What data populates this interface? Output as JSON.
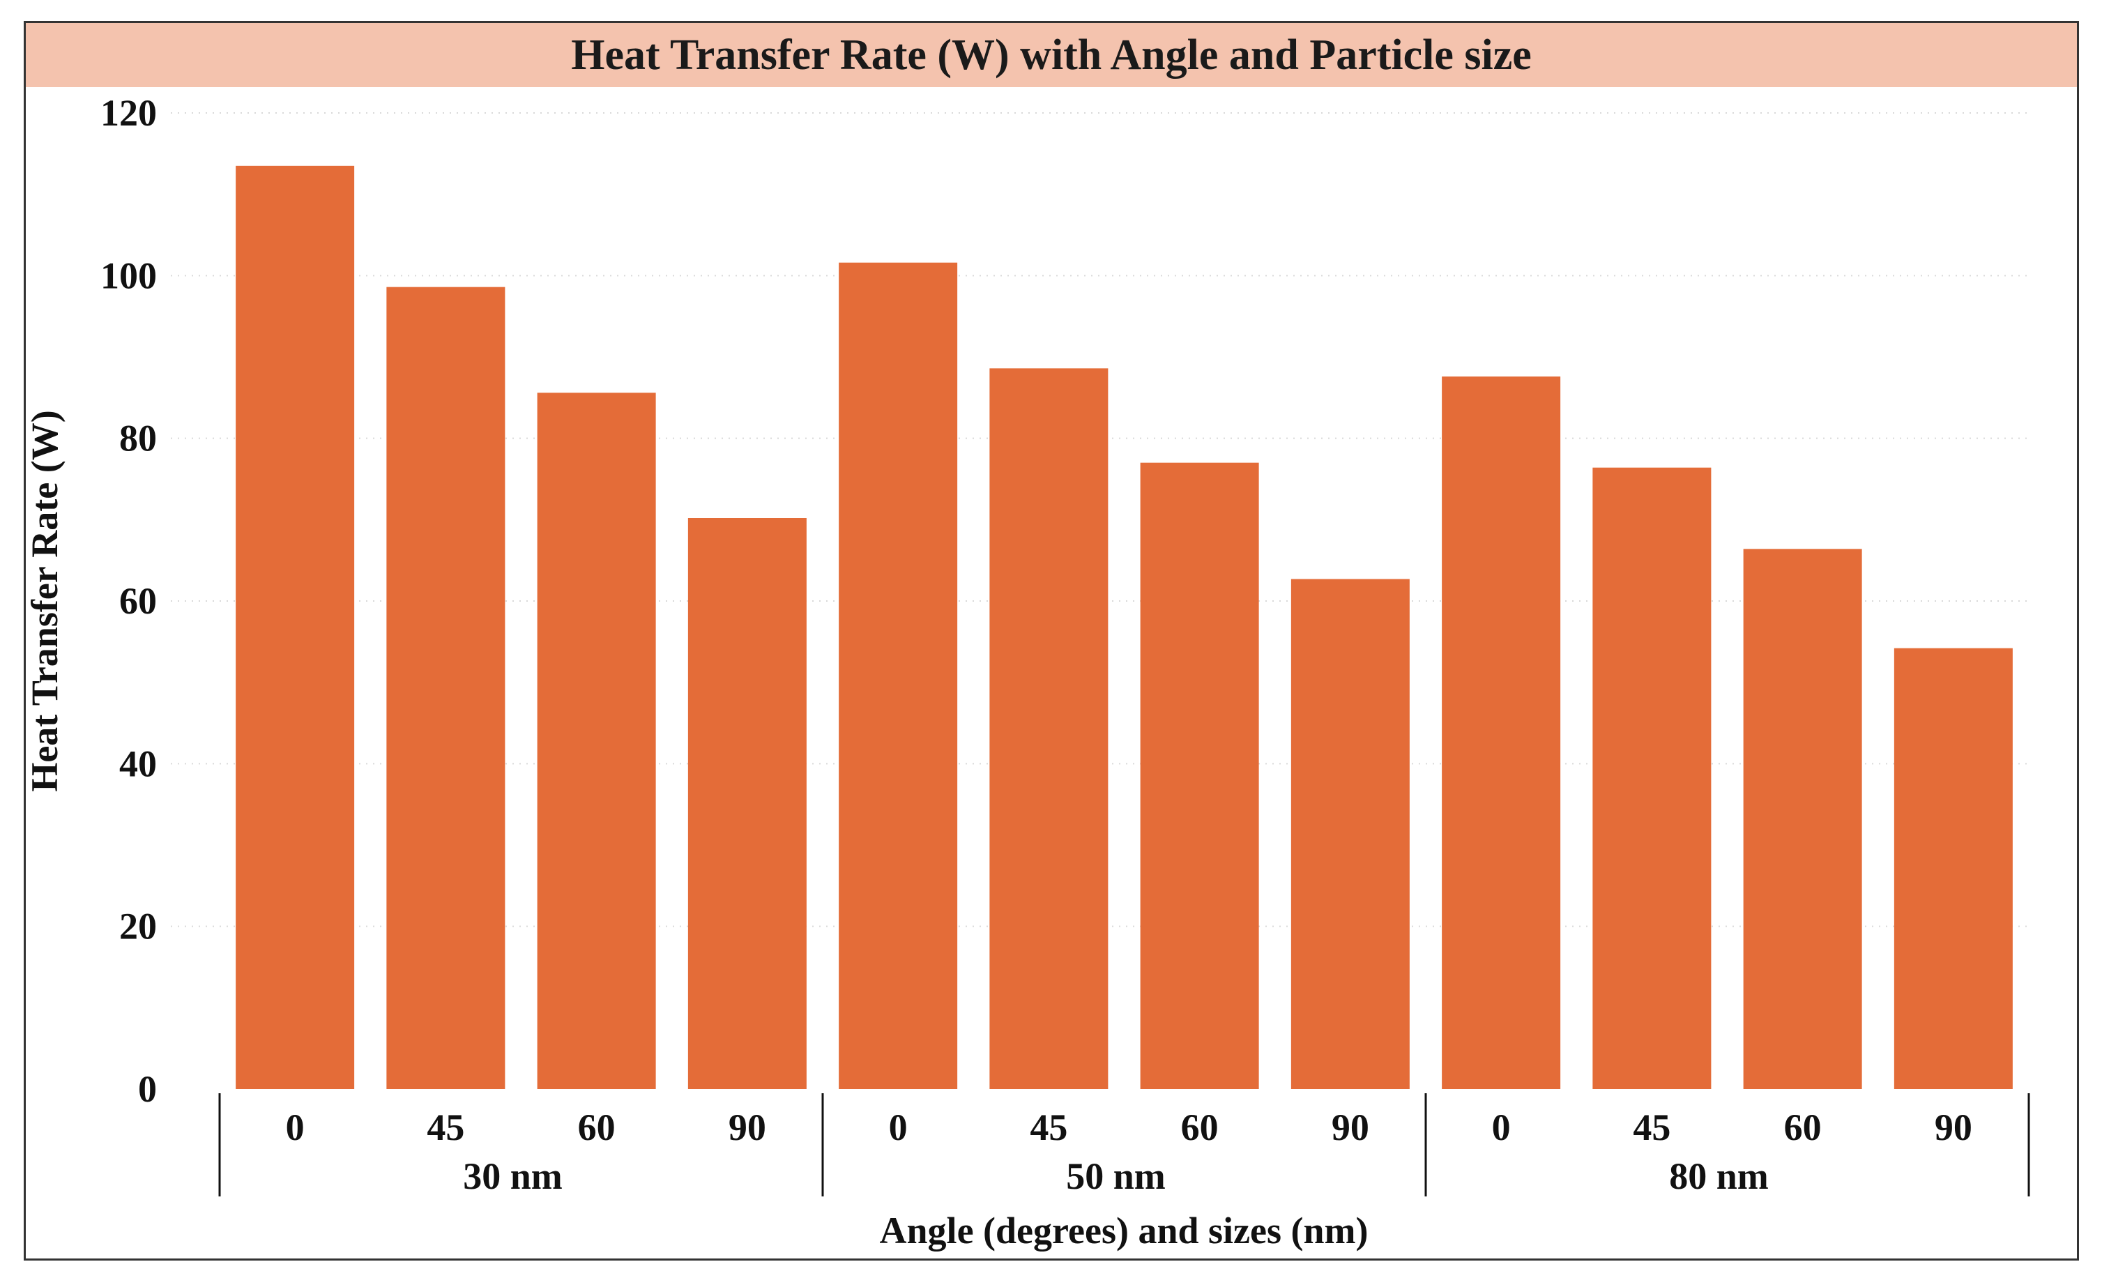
{
  "colors": {
    "bar": "#E46C38",
    "title_band": "#F4C3AE",
    "grid": "#d9d9d9",
    "axis": "#111111"
  },
  "chart_data": {
    "type": "bar",
    "title": "Heat Transfer Rate (W) with Angle and Particle size",
    "xlabel": "Angle (degrees) and sizes (nm)",
    "ylabel": "Heat Transfer Rate (W)",
    "ylim": [
      0,
      120
    ],
    "yticks": [
      "0",
      "20",
      "40",
      "60",
      "80",
      "100",
      "120"
    ],
    "grid": true,
    "groups": [
      {
        "name": "30 nm",
        "categories": [
          "0",
          "45",
          "60",
          "90"
        ],
        "values": [
          113.5,
          98.6,
          85.6,
          70.2
        ]
      },
      {
        "name": "50 nm",
        "categories": [
          "0",
          "45",
          "60",
          "90"
        ],
        "values": [
          101.6,
          88.6,
          77.0,
          62.7
        ]
      },
      {
        "name": "80 nm",
        "categories": [
          "0",
          "45",
          "60",
          "90"
        ],
        "values": [
          87.6,
          76.4,
          66.4,
          54.2
        ]
      }
    ]
  }
}
